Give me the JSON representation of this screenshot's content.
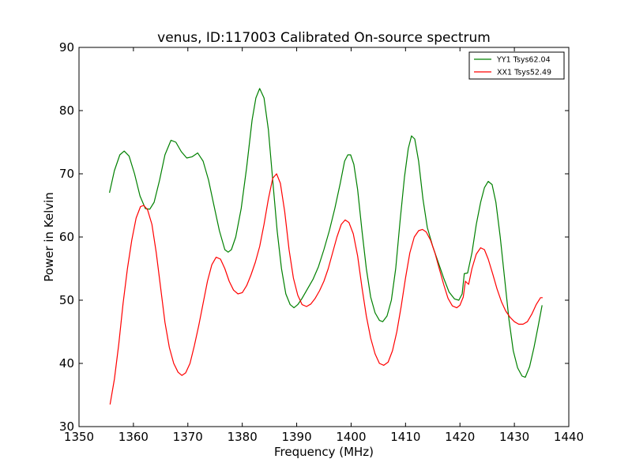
{
  "chart_data": {
    "type": "line",
    "title": "venus, ID:117003 Calibrated On-source spectrum",
    "xlabel": "Frequency (MHz)",
    "ylabel": "Power in Kelvin",
    "xlim": [
      1350,
      1440
    ],
    "ylim": [
      30,
      90
    ],
    "xticks": [
      1350,
      1360,
      1370,
      1380,
      1390,
      1400,
      1410,
      1420,
      1430,
      1440
    ],
    "yticks": [
      30,
      40,
      50,
      60,
      70,
      80,
      90
    ],
    "grid": false,
    "legend_position": "top-right",
    "series": [
      {
        "name": "YY1 Tsys62.04",
        "color": "#008000",
        "points": [
          [
            1355.6,
            67.0
          ],
          [
            1356.5,
            70.5
          ],
          [
            1357.5,
            73.0
          ],
          [
            1358.3,
            73.6
          ],
          [
            1359.2,
            72.8
          ],
          [
            1360.2,
            70.0
          ],
          [
            1361.2,
            66.5
          ],
          [
            1362.2,
            64.5
          ],
          [
            1363.0,
            64.4
          ],
          [
            1363.8,
            65.5
          ],
          [
            1364.8,
            69.0
          ],
          [
            1365.8,
            73.0
          ],
          [
            1366.9,
            75.3
          ],
          [
            1367.8,
            75.0
          ],
          [
            1368.8,
            73.5
          ],
          [
            1369.8,
            72.5
          ],
          [
            1370.8,
            72.7
          ],
          [
            1371.8,
            73.3
          ],
          [
            1372.8,
            72.0
          ],
          [
            1373.8,
            69.0
          ],
          [
            1374.8,
            65.0
          ],
          [
            1375.8,
            61.0
          ],
          [
            1376.8,
            58.0
          ],
          [
            1377.4,
            57.6
          ],
          [
            1378.0,
            58.0
          ],
          [
            1378.8,
            60.0
          ],
          [
            1379.8,
            64.5
          ],
          [
            1380.8,
            71.0
          ],
          [
            1381.8,
            78.5
          ],
          [
            1382.5,
            82.0
          ],
          [
            1383.2,
            83.5
          ],
          [
            1384.0,
            82.0
          ],
          [
            1384.8,
            77.0
          ],
          [
            1385.6,
            69.0
          ],
          [
            1386.4,
            61.0
          ],
          [
            1387.2,
            55.0
          ],
          [
            1388.0,
            51.0
          ],
          [
            1388.8,
            49.3
          ],
          [
            1389.5,
            48.8
          ],
          [
            1390.2,
            49.3
          ],
          [
            1391.0,
            50.3
          ],
          [
            1392.0,
            51.8
          ],
          [
            1393.0,
            53.3
          ],
          [
            1394.0,
            55.3
          ],
          [
            1395.0,
            58.0
          ],
          [
            1396.0,
            61.0
          ],
          [
            1397.0,
            64.5
          ],
          [
            1398.0,
            68.5
          ],
          [
            1398.8,
            72.0
          ],
          [
            1399.4,
            73.0
          ],
          [
            1399.9,
            73.0
          ],
          [
            1400.5,
            71.5
          ],
          [
            1401.2,
            67.5
          ],
          [
            1402.0,
            61.0
          ],
          [
            1402.8,
            55.0
          ],
          [
            1403.6,
            50.5
          ],
          [
            1404.4,
            48.0
          ],
          [
            1405.2,
            46.8
          ],
          [
            1405.8,
            46.6
          ],
          [
            1406.6,
            47.5
          ],
          [
            1407.4,
            50.0
          ],
          [
            1408.2,
            55.0
          ],
          [
            1409.0,
            62.5
          ],
          [
            1409.8,
            69.5
          ],
          [
            1410.5,
            74.0
          ],
          [
            1411.1,
            76.0
          ],
          [
            1411.7,
            75.5
          ],
          [
            1412.4,
            72.0
          ],
          [
            1413.2,
            66.0
          ],
          [
            1414.0,
            61.5
          ],
          [
            1415.0,
            58.5
          ],
          [
            1416.0,
            56.0
          ],
          [
            1417.0,
            53.5
          ],
          [
            1418.0,
            51.3
          ],
          [
            1419.0,
            50.2
          ],
          [
            1419.8,
            50.0
          ],
          [
            1420.4,
            51.0
          ],
          [
            1420.8,
            54.2
          ],
          [
            1421.4,
            54.3
          ],
          [
            1422.2,
            57.5
          ],
          [
            1423.0,
            62.0
          ],
          [
            1423.8,
            65.5
          ],
          [
            1424.5,
            67.8
          ],
          [
            1425.2,
            68.8
          ],
          [
            1425.9,
            68.3
          ],
          [
            1426.6,
            65.5
          ],
          [
            1427.4,
            60.0
          ],
          [
            1428.2,
            53.5
          ],
          [
            1429.0,
            47.0
          ],
          [
            1429.8,
            42.0
          ],
          [
            1430.6,
            39.3
          ],
          [
            1431.4,
            38.0
          ],
          [
            1432.0,
            37.8
          ],
          [
            1432.8,
            39.5
          ],
          [
            1433.6,
            42.5
          ],
          [
            1434.4,
            46.0
          ],
          [
            1435.1,
            49.2
          ]
        ]
      },
      {
        "name": "XX1 Tsys52.49",
        "color": "#ff0000",
        "points": [
          [
            1355.7,
            33.5
          ],
          [
            1356.5,
            37.5
          ],
          [
            1357.3,
            43.0
          ],
          [
            1358.1,
            49.5
          ],
          [
            1358.9,
            55.0
          ],
          [
            1359.7,
            59.5
          ],
          [
            1360.5,
            63.0
          ],
          [
            1361.3,
            64.8
          ],
          [
            1361.9,
            65.0
          ],
          [
            1362.6,
            64.3
          ],
          [
            1363.4,
            62.0
          ],
          [
            1364.2,
            57.5
          ],
          [
            1365.0,
            52.0
          ],
          [
            1365.8,
            46.5
          ],
          [
            1366.6,
            42.5
          ],
          [
            1367.4,
            40.0
          ],
          [
            1368.2,
            38.6
          ],
          [
            1368.9,
            38.1
          ],
          [
            1369.6,
            38.5
          ],
          [
            1370.4,
            40.0
          ],
          [
            1371.2,
            42.8
          ],
          [
            1372.0,
            46.0
          ],
          [
            1372.8,
            49.5
          ],
          [
            1373.6,
            53.0
          ],
          [
            1374.4,
            55.6
          ],
          [
            1375.2,
            56.8
          ],
          [
            1376.0,
            56.5
          ],
          [
            1376.8,
            55.0
          ],
          [
            1377.6,
            53.0
          ],
          [
            1378.4,
            51.6
          ],
          [
            1379.2,
            51.0
          ],
          [
            1380.0,
            51.2
          ],
          [
            1380.8,
            52.3
          ],
          [
            1381.6,
            54.0
          ],
          [
            1382.4,
            56.0
          ],
          [
            1383.2,
            58.5
          ],
          [
            1384.0,
            62.0
          ],
          [
            1384.8,
            66.0
          ],
          [
            1385.6,
            69.3
          ],
          [
            1386.3,
            70.0
          ],
          [
            1387.0,
            68.5
          ],
          [
            1387.8,
            64.0
          ],
          [
            1388.6,
            58.0
          ],
          [
            1389.4,
            53.5
          ],
          [
            1390.2,
            50.8
          ],
          [
            1391.0,
            49.3
          ],
          [
            1391.8,
            49.0
          ],
          [
            1392.6,
            49.4
          ],
          [
            1393.4,
            50.3
          ],
          [
            1394.2,
            51.5
          ],
          [
            1395.0,
            53.0
          ],
          [
            1395.8,
            55.0
          ],
          [
            1396.6,
            57.5
          ],
          [
            1397.4,
            60.0
          ],
          [
            1398.2,
            62.0
          ],
          [
            1398.9,
            62.7
          ],
          [
            1399.6,
            62.3
          ],
          [
            1400.4,
            60.5
          ],
          [
            1401.2,
            57.0
          ],
          [
            1402.0,
            52.0
          ],
          [
            1402.8,
            47.5
          ],
          [
            1403.6,
            44.0
          ],
          [
            1404.4,
            41.5
          ],
          [
            1405.2,
            40.0
          ],
          [
            1406.0,
            39.7
          ],
          [
            1406.8,
            40.2
          ],
          [
            1407.6,
            42.0
          ],
          [
            1408.4,
            45.0
          ],
          [
            1409.2,
            49.0
          ],
          [
            1410.0,
            53.5
          ],
          [
            1410.8,
            57.5
          ],
          [
            1411.6,
            60.0
          ],
          [
            1412.4,
            61.0
          ],
          [
            1413.1,
            61.2
          ],
          [
            1413.8,
            60.8
          ],
          [
            1414.6,
            59.5
          ],
          [
            1415.4,
            57.5
          ],
          [
            1416.2,
            55.0
          ],
          [
            1417.0,
            52.5
          ],
          [
            1417.8,
            50.3
          ],
          [
            1418.6,
            49.1
          ],
          [
            1419.4,
            48.8
          ],
          [
            1420.0,
            49.2
          ],
          [
            1420.6,
            50.5
          ],
          [
            1421.0,
            53.0
          ],
          [
            1421.6,
            52.5
          ],
          [
            1422.2,
            55.0
          ],
          [
            1423.0,
            57.3
          ],
          [
            1423.8,
            58.3
          ],
          [
            1424.5,
            58.0
          ],
          [
            1425.2,
            56.5
          ],
          [
            1426.0,
            54.2
          ],
          [
            1426.8,
            51.8
          ],
          [
            1427.6,
            49.8
          ],
          [
            1428.4,
            48.3
          ],
          [
            1429.2,
            47.3
          ],
          [
            1430.0,
            46.6
          ],
          [
            1430.8,
            46.2
          ],
          [
            1431.6,
            46.2
          ],
          [
            1432.4,
            46.6
          ],
          [
            1433.2,
            47.8
          ],
          [
            1434.0,
            49.3
          ],
          [
            1434.8,
            50.4
          ],
          [
            1435.2,
            50.4
          ]
        ]
      }
    ]
  }
}
